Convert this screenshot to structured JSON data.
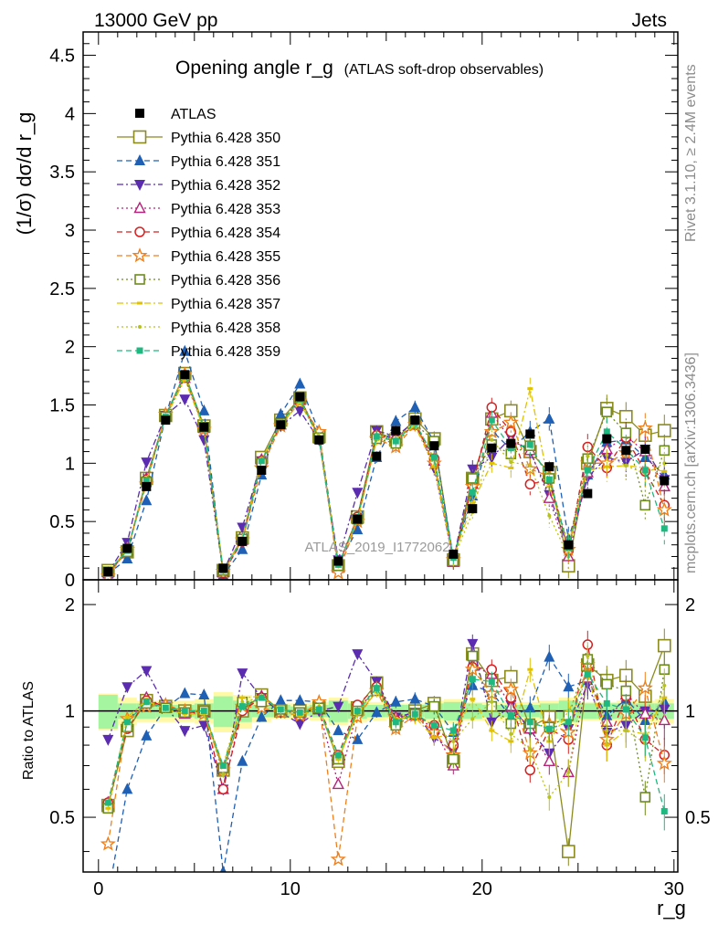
{
  "header": {
    "left": "13000 GeV pp",
    "right": "Jets"
  },
  "side": {
    "rivet": "Rivet 3.1.10, ≥ 2.4M events",
    "mcplots": "mcplots.cern.ch [arXiv:1306.3436]"
  },
  "chart_data": [
    {
      "type": "scatter",
      "panel": "main",
      "title": "Opening angle r_g",
      "title_suffix": "(ATLAS soft-drop observables)",
      "watermark": "ATLAS_2019_I1772062",
      "ylabel": "(1/σ) dσ/d r_g",
      "xlabel": "",
      "xlim": [
        -0.8,
        30.2
      ],
      "ylim": [
        0,
        4.7
      ],
      "yticks": [
        "0",
        "0.5",
        "1",
        "1.5",
        "2",
        "2.5",
        "3",
        "3.5",
        "4",
        "4.5"
      ],
      "legend_position": "top-left",
      "x": [
        0.5,
        1.5,
        2.5,
        3.5,
        4.5,
        5.5,
        6.5,
        7.5,
        8.5,
        9.5,
        10.5,
        11.5,
        12.5,
        13.5,
        14.5,
        15.5,
        16.5,
        17.5,
        18.5,
        19.5,
        20.5,
        21.5,
        22.5,
        23.5,
        24.5,
        25.5,
        26.5,
        27.5,
        28.5,
        29.5
      ],
      "data": {
        "name": "ATLAS",
        "values": [
          0.07,
          0.27,
          0.8,
          1.37,
          1.76,
          1.31,
          0.1,
          0.33,
          0.94,
          1.33,
          1.57,
          1.2,
          0.16,
          0.52,
          1.06,
          1.28,
          1.37,
          1.15,
          0.22,
          0.61,
          1.13,
          1.17,
          1.25,
          0.97,
          0.3,
          0.74,
          1.21,
          1.11,
          1.12,
          0.85
        ]
      },
      "series": [
        {
          "name": "Pythia 6.428 350",
          "color": "#8b8b1f",
          "marker": "square-open",
          "line": "solid",
          "values": [
            0.08,
            0.24,
            0.87,
            1.41,
            1.77,
            1.32,
            0.08,
            0.36,
            1.05,
            1.37,
            1.56,
            1.23,
            0.12,
            0.54,
            1.27,
            1.2,
            1.38,
            1.21,
            0.17,
            0.87,
            1.38,
            1.45,
            1.1,
            0.92,
            0.12,
            1.0,
            1.47,
            1.4,
            1.24,
            1.28
          ]
        },
        {
          "name": "Pythia 6.428 351",
          "color": "#1f5fb4",
          "marker": "triangle-up",
          "line": "dashed",
          "values": [
            0.05,
            0.18,
            0.68,
            1.4,
            1.96,
            1.45,
            0.04,
            0.26,
            0.9,
            1.42,
            1.68,
            1.27,
            0.14,
            0.43,
            1.05,
            1.36,
            1.48,
            1.18,
            0.19,
            0.72,
            1.28,
            1.12,
            1.27,
            1.38,
            0.35,
            0.9,
            1.18,
            1.2,
            1.05,
            0.9
          ]
        },
        {
          "name": "Pythia 6.428 352",
          "color": "#5b2bb0",
          "marker": "triangle-down",
          "line": "dashdot",
          "values": [
            0.06,
            0.32,
            1.01,
            1.41,
            1.55,
            1.2,
            0.06,
            0.45,
            1.02,
            1.32,
            1.45,
            1.2,
            0.17,
            0.75,
            1.28,
            1.23,
            1.36,
            0.96,
            0.17,
            0.95,
            1.05,
            1.22,
            1.1,
            0.73,
            0.27,
            0.88,
            1.05,
            1.01,
            1.12,
            0.86
          ]
        },
        {
          "name": "Pythia 6.428 353",
          "color": "#b3247a",
          "marker": "triangle-open",
          "line": "dotted",
          "values": [
            0.06,
            0.25,
            0.87,
            1.4,
            1.73,
            1.3,
            0.06,
            0.34,
            1.03,
            1.33,
            1.54,
            1.21,
            0.1,
            0.52,
            1.24,
            1.22,
            1.33,
            1.02,
            0.15,
            0.82,
            1.43,
            1.2,
            1.11,
            0.7,
            0.2,
            0.92,
            1.12,
            1.23,
            1.1,
            0.8
          ]
        },
        {
          "name": "Pythia 6.428 354",
          "color": "#d42020",
          "marker": "circle-open",
          "line": "dashed",
          "values": [
            0.06,
            0.24,
            0.86,
            1.41,
            1.75,
            1.3,
            0.06,
            0.33,
            1.02,
            1.34,
            1.56,
            1.23,
            0.12,
            0.54,
            1.24,
            1.2,
            1.33,
            1.04,
            0.18,
            0.81,
            1.48,
            1.27,
            0.82,
            0.86,
            0.25,
            1.14,
            0.96,
            1.22,
            0.93,
            0.64
          ]
        },
        {
          "name": "Pythia 6.428 355",
          "color": "#f07f1a",
          "marker": "star-open",
          "line": "dashed",
          "values": [
            0.03,
            0.26,
            0.82,
            1.42,
            1.76,
            1.29,
            0.07,
            0.34,
            0.96,
            1.32,
            1.53,
            1.27,
            0.06,
            0.5,
            1.21,
            1.14,
            1.33,
            1.0,
            0.17,
            0.8,
            1.27,
            1.35,
            0.95,
            0.89,
            0.26,
            1.0,
            1.0,
            1.09,
            1.3,
            0.6
          ]
        },
        {
          "name": "Pythia 6.428 356",
          "color": "#6e8b1d",
          "marker": "square-open-small",
          "line": "dotted",
          "values": [
            0.07,
            0.24,
            0.84,
            1.4,
            1.75,
            1.31,
            0.08,
            0.35,
            1.0,
            1.34,
            1.56,
            1.22,
            0.12,
            0.52,
            1.21,
            1.17,
            1.34,
            1.19,
            0.16,
            0.87,
            1.16,
            1.08,
            1.15,
            0.87,
            0.29,
            1.04,
            1.44,
            1.26,
            0.64,
            1.11
          ]
        },
        {
          "name": "Pythia 6.428 357",
          "color": "#e0c200",
          "marker": "dash-dot",
          "line": "dashdot",
          "values": [
            0.07,
            0.26,
            0.86,
            1.39,
            1.72,
            1.29,
            0.07,
            0.36,
            1.03,
            1.33,
            1.52,
            1.22,
            0.12,
            0.51,
            1.2,
            1.21,
            1.32,
            0.97,
            0.19,
            0.66,
            1.0,
            0.96,
            1.64,
            0.8,
            0.3,
            0.94,
            0.97,
            0.98,
            0.96,
            0.93
          ]
        },
        {
          "name": "Pythia 6.428 358",
          "color": "#b8c21f",
          "marker": "dot",
          "line": "dotted",
          "values": [
            0.07,
            0.25,
            0.85,
            1.4,
            1.76,
            1.31,
            0.07,
            0.35,
            1.02,
            1.34,
            1.56,
            1.23,
            0.12,
            0.51,
            1.24,
            1.2,
            1.36,
            1.04,
            0.18,
            0.58,
            1.2,
            1.01,
            0.98,
            0.55,
            0.2,
            1.06,
            1.07,
            0.98,
            0.91,
            1.0
          ]
        },
        {
          "name": "Pythia 6.428 359",
          "color": "#1fb880",
          "marker": "square-small",
          "line": "dashed",
          "values": [
            0.07,
            0.25,
            0.85,
            1.4,
            1.77,
            1.31,
            0.08,
            0.34,
            1.02,
            1.34,
            1.55,
            1.21,
            0.13,
            0.52,
            1.23,
            1.19,
            1.35,
            1.05,
            0.19,
            0.75,
            1.37,
            1.13,
            1.16,
            0.86,
            0.28,
            0.94,
            1.27,
            1.12,
            0.94,
            0.44
          ]
        }
      ]
    },
    {
      "type": "scatter",
      "panel": "ratio",
      "ylabel": "Ratio to ATLAS",
      "xlabel": "r_g",
      "xlim": [
        -0.8,
        30.2
      ],
      "ylim": [
        0.35,
        2.35
      ],
      "yticks": [
        "0.5",
        "1",
        "2"
      ],
      "xticks": [
        "0",
        "10",
        "20",
        "30"
      ],
      "band_stat": [
        0.11,
        0.05,
        0.05,
        0.04,
        0.04,
        0.05,
        0.1,
        0.07,
        0.04,
        0.04,
        0.03,
        0.04,
        0.07,
        0.05,
        0.04,
        0.04,
        0.04,
        0.05,
        0.06,
        0.05,
        0.04,
        0.04,
        0.04,
        0.05,
        0.07,
        0.05,
        0.05,
        0.05,
        0.05,
        0.05
      ],
      "band_total": [
        0.12,
        0.09,
        0.07,
        0.07,
        0.07,
        0.08,
        0.13,
        0.11,
        0.07,
        0.05,
        0.05,
        0.06,
        0.09,
        0.07,
        0.06,
        0.05,
        0.05,
        0.07,
        0.08,
        0.06,
        0.06,
        0.06,
        0.06,
        0.07,
        0.09,
        0.06,
        0.06,
        0.07,
        0.07,
        0.08
      ],
      "series": [
        {
          "name": "Pythia 6.428 350",
          "values": [
            0.54,
            0.88,
            1.07,
            1.03,
            1.0,
            1.0,
            0.68,
            1.0,
            1.11,
            1.0,
            1.0,
            1.02,
            0.72,
            1.02,
            1.2,
            0.94,
            1.0,
            1.05,
            0.72,
            1.45,
            1.22,
            1.25,
            0.9,
            0.96,
            0.4,
            1.35,
            1.22,
            1.26,
            1.1,
            1.53
          ]
        },
        {
          "name": "Pythia 6.428 351",
          "values": [
            0.3,
            0.6,
            0.85,
            1.02,
            1.12,
            1.11,
            0.35,
            0.72,
            0.96,
            1.07,
            1.07,
            1.06,
            0.88,
            0.83,
            0.99,
            1.06,
            1.08,
            1.03,
            0.87,
            1.18,
            1.13,
            0.96,
            1.02,
            1.42,
            1.17,
            1.22,
            0.97,
            1.08,
            0.94,
            1.06
          ]
        },
        {
          "name": "Pythia 6.428 352",
          "values": [
            0.83,
            1.17,
            1.3,
            1.03,
            0.88,
            0.91,
            0.6,
            1.28,
            1.09,
            0.99,
            0.92,
            1.0,
            1.03,
            1.45,
            1.21,
            0.96,
            0.99,
            0.84,
            0.77,
            1.55,
            0.93,
            1.04,
            0.88,
            0.76,
            0.89,
            1.19,
            0.87,
            0.91,
            1.0,
            1.01
          ]
        },
        {
          "name": "Pythia 6.428 353",
          "values": [
            0.55,
            0.93,
            1.09,
            1.02,
            0.98,
            0.99,
            0.6,
            1.02,
            1.1,
            1.0,
            0.98,
            1.01,
            0.62,
            1.0,
            1.17,
            0.96,
            0.97,
            0.89,
            0.7,
            1.34,
            1.27,
            1.03,
            0.89,
            0.72,
            0.67,
            1.24,
            0.93,
            1.11,
            0.98,
            0.94
          ]
        },
        {
          "name": "Pythia 6.428 354",
          "values": [
            0.55,
            0.89,
            1.07,
            1.03,
            0.99,
            0.99,
            0.6,
            1.0,
            1.09,
            1.01,
            0.99,
            1.03,
            0.75,
            1.04,
            1.17,
            0.94,
            0.97,
            0.91,
            0.8,
            1.33,
            1.31,
            1.09,
            0.68,
            0.89,
            0.83,
            1.54,
            0.8,
            1.1,
            0.83,
            0.75
          ]
        },
        {
          "name": "Pythia 6.428 355",
          "values": [
            0.42,
            0.95,
            1.03,
            1.04,
            1.0,
            0.98,
            0.68,
            1.03,
            1.02,
            0.99,
            0.97,
            1.06,
            0.38,
            0.96,
            1.14,
            0.89,
            0.97,
            0.87,
            0.75,
            1.31,
            1.12,
            1.15,
            0.76,
            0.92,
            0.87,
            1.35,
            0.83,
            0.98,
            1.16,
            0.71
          ]
        },
        {
          "name": "Pythia 6.428 356",
          "values": [
            0.53,
            0.9,
            1.05,
            1.02,
            0.99,
            1.0,
            0.69,
            1.06,
            1.06,
            1.01,
            0.99,
            1.02,
            0.73,
            1.0,
            1.14,
            0.91,
            0.98,
            1.03,
            0.73,
            1.43,
            1.03,
            0.92,
            0.92,
            0.9,
            0.97,
            1.4,
            1.19,
            1.14,
            0.57,
            1.31
          ]
        },
        {
          "name": "Pythia 6.428 357",
          "values": [
            0.53,
            0.96,
            1.07,
            1.01,
            0.98,
            0.98,
            0.7,
            1.09,
            1.1,
            1.0,
            0.97,
            1.02,
            0.73,
            0.98,
            1.13,
            0.95,
            0.96,
            0.84,
            0.86,
            1.08,
            0.88,
            0.82,
            1.31,
            0.82,
            1.0,
            1.27,
            0.8,
            0.88,
            0.86,
            1.09
          ]
        },
        {
          "name": "Pythia 6.428 358",
          "values": [
            0.55,
            0.93,
            1.06,
            1.02,
            1.0,
            1.0,
            0.66,
            1.06,
            1.09,
            1.01,
            0.99,
            1.03,
            0.74,
            0.98,
            1.17,
            0.94,
            0.99,
            0.9,
            0.82,
            0.95,
            1.06,
            0.86,
            0.78,
            0.57,
            0.67,
            1.43,
            0.88,
            0.88,
            0.81,
            1.18
          ]
        },
        {
          "name": "Pythia 6.428 359",
          "values": [
            0.55,
            0.93,
            1.06,
            1.02,
            1.0,
            1.0,
            0.7,
            1.03,
            1.09,
            1.01,
            0.99,
            1.01,
            0.75,
            1.0,
            1.16,
            0.93,
            0.98,
            0.91,
            0.88,
            1.23,
            1.21,
            0.97,
            0.93,
            0.89,
            0.93,
            1.27,
            1.05,
            1.01,
            0.84,
            0.52
          ]
        }
      ]
    }
  ]
}
